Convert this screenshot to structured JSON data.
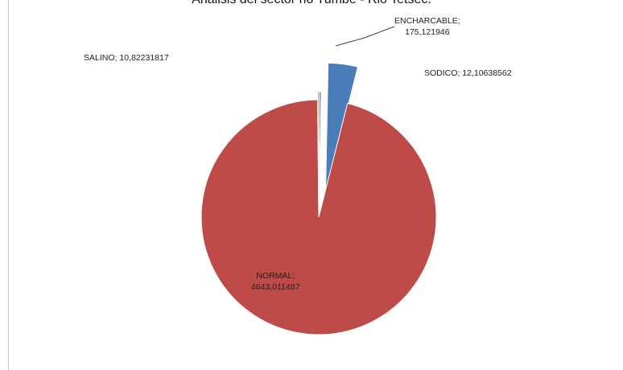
{
  "chart_data": {
    "type": "pie",
    "title": "Analisis del sector rio Tumbe - Rio Tetsec.",
    "slices": [
      {
        "label": "ENCHARCABLE",
        "value_text": "175,121946",
        "value": 175.121946,
        "color": "#4a7ebb"
      },
      {
        "label": "NORMAL",
        "value_text": "4643,011487",
        "value": 4643.011487,
        "color": "#be4b48"
      },
      {
        "label": "SALINO",
        "value_text": "10,82231817",
        "value": 10.82231817,
        "color": "#98b954"
      },
      {
        "label": "SODICO",
        "value_text": "12,10638562",
        "value": 12.10638562,
        "color": "#7d60a0"
      }
    ],
    "label_format": "{label}; {value}"
  }
}
